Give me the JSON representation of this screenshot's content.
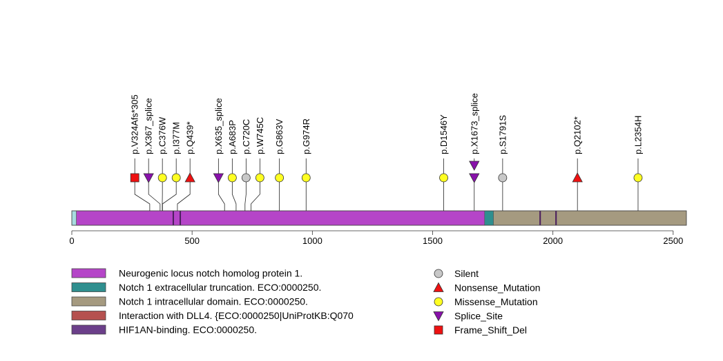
{
  "chart_data": {
    "type": "lollipop",
    "protein_length": 2555,
    "x_range": [
      0,
      2555
    ],
    "x_ticks": [
      0,
      500,
      1000,
      1500,
      2000,
      2500
    ],
    "domains": [
      {
        "name": "Neurogenic locus notch homolog protein 1.",
        "start": 19,
        "end": 1716,
        "color": "#b545c8"
      },
      {
        "name": "Notch 1 extracellular truncation. ECO:0000250.",
        "start": 1716,
        "end": 1753,
        "color": "#2f8f8f"
      },
      {
        "name": "Notch 1 intracellular domain. ECO:0000250.",
        "start": 1753,
        "end": 2555,
        "color": "#a59a80"
      },
      {
        "name": "Interaction with DLL4. {ECO:0000250|UniProtKB:Q070",
        "start": 412,
        "end": 415,
        "color": "#b5514f"
      },
      {
        "name": "HIF1AN-binding. ECO:0000250.",
        "start": 1945,
        "end": 1950,
        "color": "#6b3f8a"
      }
    ],
    "dark_bands": [
      {
        "start": 419,
        "end": 422,
        "color": "#4b1f5e"
      },
      {
        "start": 448,
        "end": 452,
        "color": "#4b1f5e"
      },
      {
        "start": 1944,
        "end": 1950,
        "color": "#4b1f5e"
      },
      {
        "start": 2010,
        "end": 2016,
        "color": "#4b1f5e"
      }
    ],
    "signal_region": {
      "start": 0,
      "end": 19,
      "color": "#a8dce0"
    },
    "mutations": [
      {
        "label": "p.V324Afs*305",
        "position": 324,
        "type": "Frame_Shift_Del"
      },
      {
        "label": "p.X367_splice",
        "position": 367,
        "type": "Splice_Site"
      },
      {
        "label": "p.C376W",
        "position": 376,
        "type": "Missense_Mutation"
      },
      {
        "label": "p.I377M",
        "position": 377,
        "type": "Missense_Mutation"
      },
      {
        "label": "p.Q439*",
        "position": 439,
        "type": "Nonsense_Mutation"
      },
      {
        "label": "p.X635_splice",
        "position": 635,
        "type": "Splice_Site"
      },
      {
        "label": "p.A683P",
        "position": 683,
        "type": "Missense_Mutation"
      },
      {
        "label": "p.C720C",
        "position": 720,
        "type": "Silent"
      },
      {
        "label": "p.W745C",
        "position": 745,
        "type": "Missense_Mutation"
      },
      {
        "label": "p.G863V",
        "position": 863,
        "type": "Missense_Mutation"
      },
      {
        "label": "p.G974R",
        "position": 974,
        "type": "Missense_Mutation"
      },
      {
        "label": "p.D1546Y",
        "position": 1546,
        "type": "Missense_Mutation"
      },
      {
        "label": "p.X1673_splice",
        "position": 1673,
        "type": "Splice_Site",
        "stacked": true
      },
      {
        "label": "p.X1673_splice",
        "position": 1673,
        "type": "Splice_Site"
      },
      {
        "label": "p.S1791S",
        "position": 1791,
        "type": "Silent"
      },
      {
        "label": "p.Q2102*",
        "position": 2102,
        "type": "Nonsense_Mutation"
      },
      {
        "label": "p.L2354H",
        "position": 2354,
        "type": "Missense_Mutation"
      }
    ],
    "mutation_legend": [
      {
        "type": "Silent",
        "label": "Silent",
        "shape": "circle",
        "color": "#c8c8c8"
      },
      {
        "type": "Nonsense_Mutation",
        "label": "Nonsense_Mutation",
        "shape": "triangle-up",
        "color": "#ee1111"
      },
      {
        "type": "Missense_Mutation",
        "label": "Missense_Mutation",
        "shape": "circle",
        "color": "#ffff22"
      },
      {
        "type": "Splice_Site",
        "label": "Splice_Site",
        "shape": "triangle-down",
        "color": "#8811aa"
      },
      {
        "type": "Frame_Shift_Del",
        "label": "Frame_Shift_Del",
        "shape": "square",
        "color": "#ee1111"
      }
    ]
  }
}
